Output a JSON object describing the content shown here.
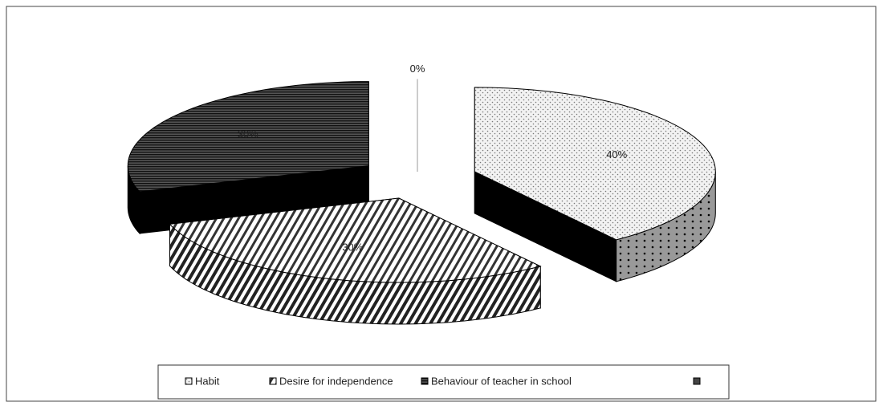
{
  "chart_data": {
    "type": "pie",
    "categories": [
      "Habit",
      "Desire for independence",
      "Behaviour of teacher in school",
      null
    ],
    "values": [
      40,
      30,
      30,
      0
    ],
    "value_labels": [
      "40%",
      "30%",
      "30%",
      "0%"
    ],
    "legend": "bottom"
  }
}
